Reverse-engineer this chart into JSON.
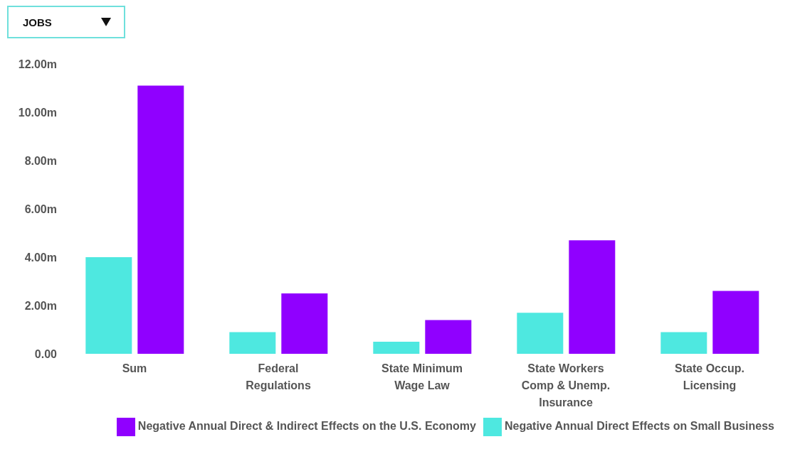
{
  "chart_data": {
    "type": "bar",
    "annotations": [
      "JOBS"
    ],
    "categories": [
      "Sum",
      "Federal Regulations",
      "State Minimum Wage Law",
      "State Workers Comp & Unemp. Insurance",
      "State Occup. Licensing"
    ],
    "series": [
      {
        "name": "Negative Annual Direct Effects on Small Business",
        "color": "#4ee8e0",
        "values": [
          4.0,
          0.9,
          0.5,
          1.7,
          0.9
        ]
      },
      {
        "name": "Negative Annual Direct & Indirect Effects on the U.S. Economy",
        "color": "#9000ff",
        "values": [
          11.1,
          2.5,
          1.4,
          4.7,
          2.6
        ]
      }
    ],
    "ylim": [
      0,
      12
    ],
    "yticks": [
      {
        "value": 0,
        "label": "0.00"
      },
      {
        "value": 2,
        "label": "2.00m"
      },
      {
        "value": 4,
        "label": "4.00m"
      },
      {
        "value": 6,
        "label": "6.00m"
      },
      {
        "value": 8,
        "label": "8.00m"
      },
      {
        "value": 10,
        "label": "10.00m"
      },
      {
        "value": 12,
        "label": "12.00m"
      }
    ],
    "grid": false,
    "legend": "bottom"
  }
}
